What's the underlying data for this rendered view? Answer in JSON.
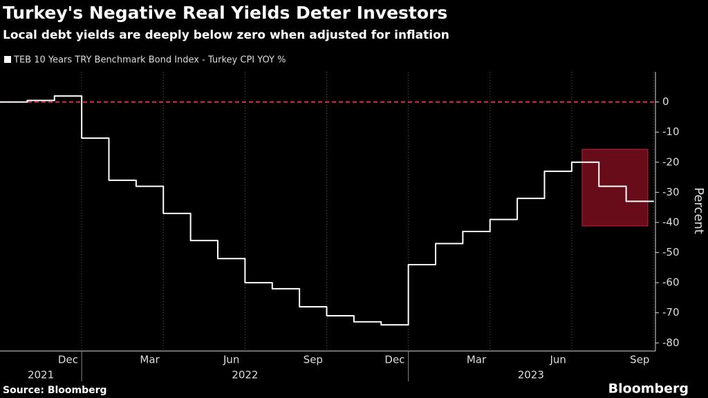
{
  "chart_data": {
    "type": "line",
    "step": true,
    "title": "Turkey's Negative Real Yields Deter Investors",
    "subtitle": "Local debt yields are deeply below zero when adjusted for inflation",
    "y_label": "Percent",
    "source": "Source: Bloomberg",
    "brand": "Bloomberg",
    "x": [
      "2021-10",
      "2021-11",
      "2021-12",
      "2022-01",
      "2022-02",
      "2022-03",
      "2022-04",
      "2022-05",
      "2022-06",
      "2022-07",
      "2022-08",
      "2022-09",
      "2022-10",
      "2022-11",
      "2022-12",
      "2023-01",
      "2023-02",
      "2023-03",
      "2023-04",
      "2023-05",
      "2023-06",
      "2023-07",
      "2023-08",
      "2023-09"
    ],
    "series": [
      {
        "name": "TEB 10 Years TRY Benchmark Bond Index - Turkey CPI YOY %",
        "color": "#ffffff",
        "values": [
          0,
          0.5,
          2,
          -12,
          -26,
          -28,
          -37,
          -46,
          -52,
          -60,
          -62,
          -68,
          -71,
          -73,
          -74,
          -54,
          -47,
          -43,
          -39,
          -32,
          -23,
          -20,
          -28,
          -33
        ]
      }
    ],
    "xlim": [
      "2021-10",
      "2023-10"
    ],
    "xticks": [
      {
        "value": "2021-12",
        "label": "Dec"
      },
      {
        "value": "2022-03",
        "label": "Mar"
      },
      {
        "value": "2022-06",
        "label": "Jun"
      },
      {
        "value": "2022-09",
        "label": "Sep"
      },
      {
        "value": "2022-12",
        "label": "Dec"
      },
      {
        "value": "2023-03",
        "label": "Mar"
      },
      {
        "value": "2023-06",
        "label": "Jun"
      },
      {
        "value": "2023-09",
        "label": "Sep"
      }
    ],
    "years": [
      "2021",
      "2022",
      "2023"
    ],
    "ylim": [
      -82,
      10
    ],
    "yticks": [
      0,
      -10,
      -20,
      -30,
      -40,
      -50,
      -60,
      -70,
      -80
    ],
    "reference_line": 0,
    "reference_color": "#e0314b",
    "grid": true
  }
}
